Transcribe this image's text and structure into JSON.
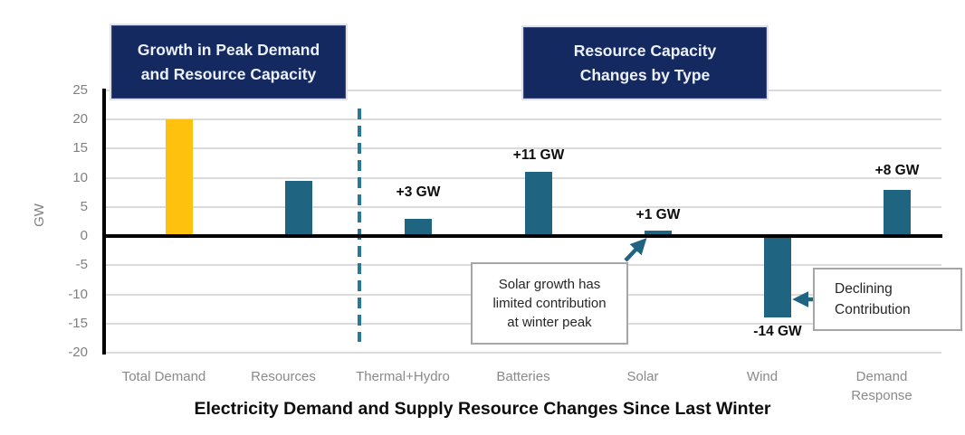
{
  "chart_data": {
    "type": "bar",
    "title": "Electricity Demand and Supply Resource Changes Since Last Winter",
    "y_axis_title": "GW",
    "ylim": [
      -20,
      25
    ],
    "ytick_step": 5,
    "grid": "horizontal",
    "categories": [
      "Total Demand",
      "Resources",
      "Thermal+Hydro",
      "Batteries",
      "Solar",
      "Wind",
      "Demand Response"
    ],
    "category_display": [
      [
        "Total Demand"
      ],
      [
        "Resources"
      ],
      [
        "Thermal+Hydro"
      ],
      [
        "Batteries"
      ],
      [
        "Solar"
      ],
      [
        "Wind"
      ],
      [
        "Demand",
        "Response"
      ]
    ],
    "values": [
      20,
      9.5,
      3,
      11,
      1,
      -14,
      8
    ],
    "bar_labels": [
      "",
      "",
      "+3 GW",
      "+11 GW",
      "+1 GW",
      "-14 GW",
      "+8 GW"
    ],
    "bar_colors": [
      "#fec10e",
      "#1f6480",
      "#1f6480",
      "#1f6480",
      "#1f6480",
      "#1f6480",
      "#1f6480"
    ],
    "colors": {
      "demand_yellow": "#fec10e",
      "resource_teal": "#1f6480",
      "header_navy": "#142960",
      "divider_teal": "#27789c",
      "arrow_teal": "#1f6480",
      "gridline_gray": "#dbdbdb",
      "axis_black": "#000000",
      "label_gray": "#808080"
    }
  },
  "headers": {
    "left": {
      "line1": "Growth in Peak Demand",
      "line2": "and Resource Capacity"
    },
    "right": {
      "line1": "Resource Capacity",
      "line2": "Changes by Type"
    }
  },
  "annotations": {
    "solar_note": {
      "line1": "Solar growth has",
      "line2": "limited  contribution",
      "line3": "at winter peak"
    },
    "wind_note": {
      "line1": "Declining",
      "line2": "Contribution"
    }
  }
}
